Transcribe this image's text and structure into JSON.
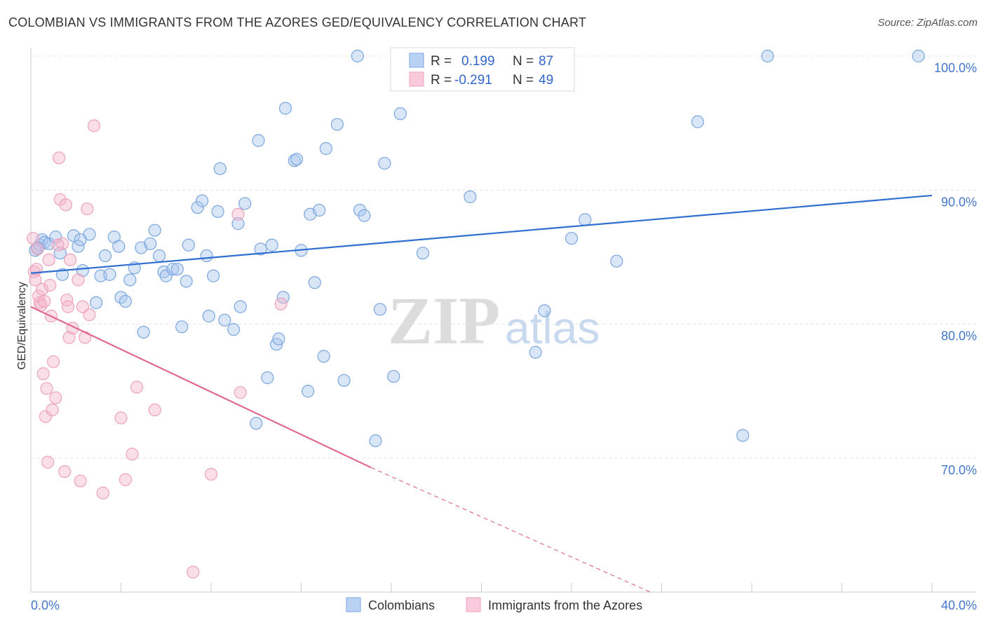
{
  "header": {
    "title": "COLOMBIAN VS IMMIGRANTS FROM THE AZORES GED/EQUIVALENCY CORRELATION CHART",
    "source": "Source: ZipAtlas.com"
  },
  "legend": {
    "r_label": "R =",
    "n_label": "N =",
    "rows": [
      {
        "r": "0.199",
        "n": "87"
      },
      {
        "r": "-0.291",
        "n": "49"
      }
    ]
  },
  "watermark": {
    "zip": "ZIP",
    "atlas": "atlas"
  },
  "chart_data": {
    "type": "scatter",
    "title": "COLOMBIAN VS IMMIGRANTS FROM THE AZORES GED/EQUIVALENCY CORRELATION CHART",
    "xlabel": "",
    "ylabel": "GED/Equivalency",
    "xlim": [
      0,
      40
    ],
    "ylim": [
      60,
      100
    ],
    "x_tick_labels": [
      "0.0%",
      "40.0%"
    ],
    "y_ticks": [
      70,
      80,
      90,
      100
    ],
    "y_tick_labels": [
      "70.0%",
      "80.0%",
      "90.0%",
      "100.0%"
    ],
    "colors": {
      "blue": "#7aa6e0",
      "blue_line": "#2f6fcf",
      "pink": "#eea2bd",
      "pink_line": "#e06a94"
    },
    "series": [
      {
        "name": "Colombians",
        "color": "#7aa6e0",
        "trend": {
          "x0": 0,
          "y0": 83.8,
          "x1": 40,
          "y1": 89.6
        },
        "points": [
          [
            0.2,
            85.5
          ],
          [
            0.4,
            85.9
          ],
          [
            0.5,
            86.3
          ],
          [
            0.6,
            86.1
          ],
          [
            0.8,
            86.0
          ],
          [
            1.1,
            86.5
          ],
          [
            1.3,
            85.3
          ],
          [
            1.4,
            83.7
          ],
          [
            1.9,
            86.6
          ],
          [
            2.1,
            85.8
          ],
          [
            2.3,
            84.0
          ],
          [
            2.6,
            86.7
          ],
          [
            2.9,
            81.6
          ],
          [
            3.1,
            83.6
          ],
          [
            3.3,
            85.1
          ],
          [
            3.5,
            83.7
          ],
          [
            3.7,
            86.5
          ],
          [
            3.9,
            85.8
          ],
          [
            4.0,
            82.0
          ],
          [
            4.2,
            81.7
          ],
          [
            4.4,
            83.3
          ],
          [
            4.6,
            84.2
          ],
          [
            4.9,
            85.7
          ],
          [
            5.0,
            79.4
          ],
          [
            5.3,
            86.0
          ],
          [
            5.5,
            87.0
          ],
          [
            5.7,
            85.1
          ],
          [
            5.9,
            83.9
          ],
          [
            6.0,
            83.6
          ],
          [
            6.3,
            84.1
          ],
          [
            6.5,
            84.1
          ],
          [
            6.7,
            79.8
          ],
          [
            6.9,
            83.2
          ],
          [
            7.0,
            85.9
          ],
          [
            7.4,
            88.7
          ],
          [
            7.6,
            89.2
          ],
          [
            7.8,
            85.1
          ],
          [
            7.9,
            80.6
          ],
          [
            8.1,
            83.6
          ],
          [
            8.3,
            88.4
          ],
          [
            8.4,
            91.6
          ],
          [
            8.6,
            80.3
          ],
          [
            9.0,
            79.6
          ],
          [
            9.2,
            87.5
          ],
          [
            9.3,
            81.3
          ],
          [
            9.5,
            89.0
          ],
          [
            10.0,
            72.6
          ],
          [
            10.1,
            93.7
          ],
          [
            10.2,
            85.6
          ],
          [
            10.5,
            76.0
          ],
          [
            10.7,
            85.9
          ],
          [
            10.9,
            78.5
          ],
          [
            11.0,
            78.9
          ],
          [
            11.2,
            82.0
          ],
          [
            11.3,
            96.1
          ],
          [
            11.7,
            92.2
          ],
          [
            11.8,
            92.3
          ],
          [
            12.0,
            85.5
          ],
          [
            12.3,
            75.0
          ],
          [
            12.4,
            88.2
          ],
          [
            12.6,
            83.1
          ],
          [
            12.8,
            88.5
          ],
          [
            13.0,
            77.6
          ],
          [
            13.1,
            93.1
          ],
          [
            13.6,
            94.9
          ],
          [
            13.9,
            75.8
          ],
          [
            14.5,
            100.0
          ],
          [
            14.6,
            88.5
          ],
          [
            14.8,
            88.1
          ],
          [
            15.3,
            71.3
          ],
          [
            15.5,
            81.1
          ],
          [
            15.7,
            92.0
          ],
          [
            16.1,
            76.1
          ],
          [
            16.4,
            95.7
          ],
          [
            17.4,
            85.3
          ],
          [
            19.5,
            89.5
          ],
          [
            22.4,
            77.9
          ],
          [
            22.8,
            81.0
          ],
          [
            24.0,
            86.4
          ],
          [
            24.6,
            87.8
          ],
          [
            26.0,
            84.7
          ],
          [
            29.6,
            95.1
          ],
          [
            31.6,
            71.7
          ],
          [
            32.7,
            100.0
          ],
          [
            39.4,
            100.0
          ],
          [
            0.3,
            85.7
          ],
          [
            2.2,
            86.3
          ]
        ]
      },
      {
        "name": "Immigrants from the Azores",
        "color": "#eea2bd",
        "trend": {
          "x0": 0,
          "y0": 81.3,
          "x1": 15.1,
          "y1": 69.3,
          "dash_x1": 27.5,
          "dash_y1": 60
        },
        "points": [
          [
            0.1,
            86.4
          ],
          [
            0.15,
            83.9
          ],
          [
            0.2,
            83.3
          ],
          [
            0.3,
            85.6
          ],
          [
            0.35,
            82.1
          ],
          [
            0.4,
            81.6
          ],
          [
            0.45,
            81.4
          ],
          [
            0.5,
            82.6
          ],
          [
            0.55,
            76.3
          ],
          [
            0.6,
            81.7
          ],
          [
            0.65,
            73.1
          ],
          [
            0.7,
            75.2
          ],
          [
            0.75,
            69.7
          ],
          [
            0.8,
            84.8
          ],
          [
            0.85,
            82.9
          ],
          [
            0.9,
            80.6
          ],
          [
            0.95,
            73.6
          ],
          [
            1.0,
            77.2
          ],
          [
            1.1,
            74.5
          ],
          [
            1.25,
            92.4
          ],
          [
            1.3,
            89.3
          ],
          [
            1.4,
            86.0
          ],
          [
            1.5,
            69.0
          ],
          [
            1.55,
            88.9
          ],
          [
            1.6,
            81.8
          ],
          [
            1.65,
            81.3
          ],
          [
            1.7,
            79.0
          ],
          [
            1.75,
            84.8
          ],
          [
            1.85,
            79.7
          ],
          [
            2.1,
            83.3
          ],
          [
            2.2,
            68.3
          ],
          [
            2.3,
            81.3
          ],
          [
            2.4,
            79.0
          ],
          [
            2.5,
            88.6
          ],
          [
            2.6,
            80.7
          ],
          [
            2.8,
            94.8
          ],
          [
            3.2,
            67.4
          ],
          [
            4.0,
            73.0
          ],
          [
            4.2,
            68.4
          ],
          [
            4.5,
            70.3
          ],
          [
            4.7,
            75.3
          ],
          [
            5.5,
            73.6
          ],
          [
            7.2,
            61.5
          ],
          [
            8.0,
            68.8
          ],
          [
            9.2,
            88.2
          ],
          [
            9.3,
            74.9
          ],
          [
            11.1,
            81.5
          ],
          [
            1.2,
            85.9
          ],
          [
            0.25,
            84.1
          ]
        ]
      }
    ]
  }
}
